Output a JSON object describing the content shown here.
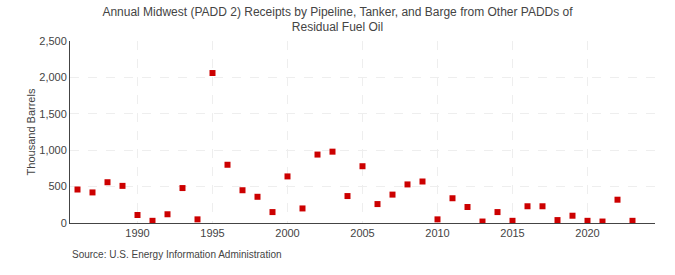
{
  "chart_data": {
    "type": "scatter",
    "title": "Annual Midwest (PADD 2) Receipts by Pipeline, Tanker, and Barge from Other PADDs of\nResidual Fuel Oil",
    "ylabel": "Thousand Barrels",
    "annotations": [
      "Source: U.S. Energy Information Administration"
    ],
    "x": [
      1986,
      1987,
      1988,
      1989,
      1990,
      1991,
      1992,
      1993,
      1994,
      1995,
      1996,
      1997,
      1998,
      1999,
      2000,
      2001,
      2002,
      2003,
      2004,
      2005,
      2006,
      2007,
      2008,
      2009,
      2010,
      2011,
      2012,
      2013,
      2014,
      2015,
      2016,
      2017,
      2018,
      2019,
      2020,
      2021,
      2022,
      2023
    ],
    "values": [
      460,
      420,
      560,
      510,
      110,
      30,
      120,
      480,
      50,
      2060,
      800,
      450,
      360,
      150,
      640,
      200,
      940,
      980,
      370,
      780,
      260,
      390,
      530,
      570,
      50,
      340,
      220,
      20,
      150,
      30,
      230,
      230,
      40,
      100,
      30,
      20,
      320,
      30
    ],
    "color": "#cc0000",
    "marker": "square",
    "xlim": [
      1985.5,
      2024.5
    ],
    "xticks": [
      1990,
      1995,
      2000,
      2005,
      2010,
      2015,
      2020
    ],
    "ylim": [
      0,
      2500
    ],
    "yticks": [
      0,
      500,
      {
        "value": 1000,
        "label": "1,000"
      },
      {
        "value": 1500,
        "label": "1,500"
      },
      {
        "value": 2000,
        "label": "2,000"
      },
      {
        "value": 2500,
        "label": "2,500"
      }
    ],
    "grid": true
  }
}
